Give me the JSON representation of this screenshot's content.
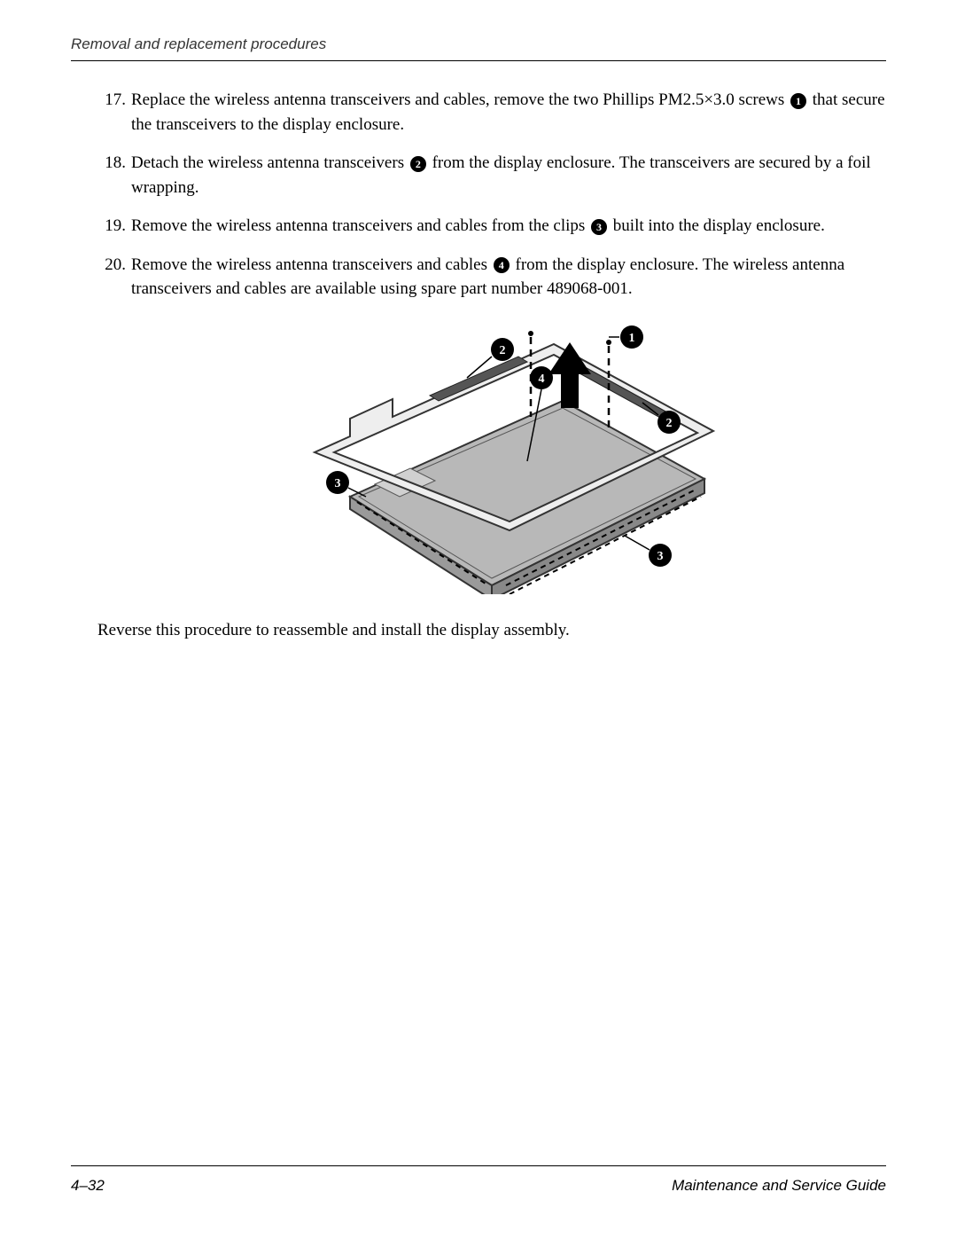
{
  "header": {
    "section_title": "Removal and replacement procedures"
  },
  "steps": [
    {
      "number": "17.",
      "parts": [
        {
          "type": "text",
          "value": "Replace the wireless antenna transceivers and cables, remove the two Phillips PM2.5×3.0 screws "
        },
        {
          "type": "callout",
          "value": "1"
        },
        {
          "type": "text",
          "value": " that secure the transceivers to the display enclosure."
        }
      ]
    },
    {
      "number": "18.",
      "parts": [
        {
          "type": "text",
          "value": "Detach the wireless antenna transceivers "
        },
        {
          "type": "callout",
          "value": "2"
        },
        {
          "type": "text",
          "value": " from the display enclosure. The transceivers are secured by a foil wrapping."
        }
      ]
    },
    {
      "number": "19.",
      "parts": [
        {
          "type": "text",
          "value": "Remove the wireless antenna transceivers and cables from the clips "
        },
        {
          "type": "callout",
          "value": "3"
        },
        {
          "type": "text",
          "value": " built into the display enclosure."
        }
      ]
    },
    {
      "number": "20.",
      "parts": [
        {
          "type": "text",
          "value": "Remove the wireless antenna transceivers and cables "
        },
        {
          "type": "callout",
          "value": "4"
        },
        {
          "type": "text",
          "value": " from the display enclosure. The wireless antenna transceivers and cables are available using spare part number 489068-001."
        }
      ]
    }
  ],
  "closing_text": "Reverse this procedure to reassemble and install the display assembly.",
  "footer": {
    "page_number": "4–32",
    "guide_title": "Maintenance and Service Guide"
  },
  "figure": {
    "callouts": [
      "1",
      "2",
      "3",
      "4"
    ],
    "colors": {
      "panel_fill": "#b8b8b8",
      "panel_stroke": "#333333",
      "frame_stroke": "#333333",
      "badge_fill": "#000000",
      "badge_text": "#ffffff",
      "dashed_line": "#000000",
      "arrow_fill": "#000000"
    }
  }
}
